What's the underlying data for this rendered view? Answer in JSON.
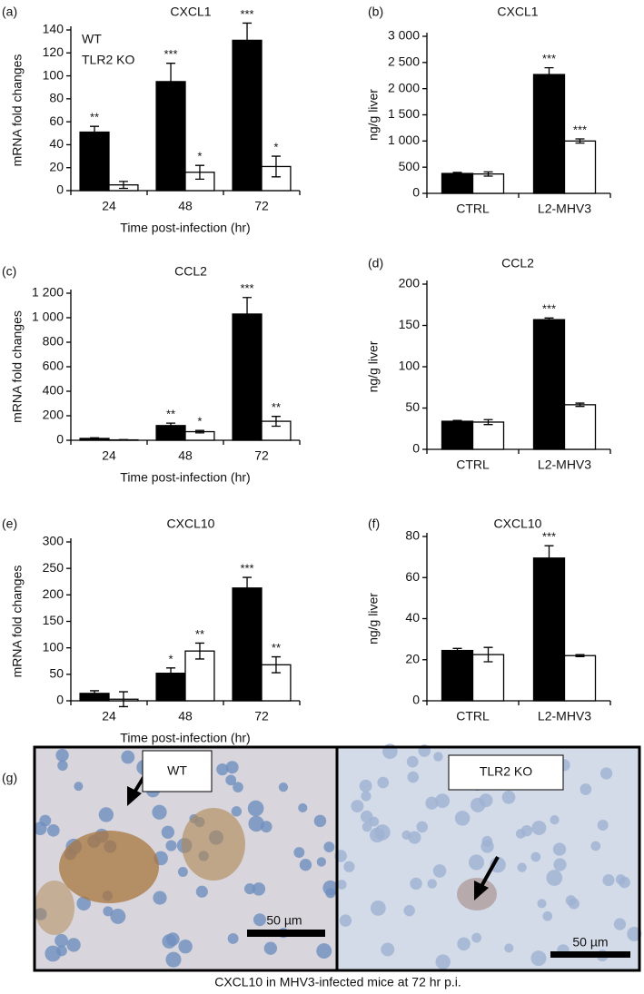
{
  "chart_data": [
    {
      "type": "bar",
      "panel": "(a)",
      "title": "CXCL1",
      "xlabel": "Time post-infection (hr)",
      "ylabel": "mRNA fold changes",
      "categories": [
        "24",
        "48",
        "72"
      ],
      "ylim": [
        0,
        140
      ],
      "yticks": [
        0,
        20,
        40,
        60,
        80,
        100,
        120,
        140
      ],
      "legend": "upper left",
      "series": [
        {
          "name": "WT",
          "color": "#000000",
          "values": [
            51,
            95,
            131
          ],
          "errors": [
            5,
            16,
            15
          ],
          "annotations": [
            "**",
            "***",
            "***"
          ]
        },
        {
          "name": "TLR2 KO",
          "color": "#ffffff",
          "values": [
            5,
            16,
            21
          ],
          "errors": [
            3,
            6,
            9
          ],
          "annotations": [
            null,
            "*",
            "*"
          ]
        }
      ]
    },
    {
      "type": "bar",
      "panel": "(b)",
      "title": "CXCL1",
      "ylabel": "ng/g liver",
      "categories": [
        "CTRL",
        "L2-MHV3"
      ],
      "ylim": [
        0,
        3000
      ],
      "yticks": [
        0,
        500,
        {
          "value": 1000,
          "label": "1 000"
        },
        {
          "value": 1500,
          "label": "1 500"
        },
        {
          "value": 2000,
          "label": "2 000"
        },
        {
          "value": 2500,
          "label": "2 500"
        },
        {
          "value": 3000,
          "label": "3 000"
        }
      ],
      "series": [
        {
          "color": "#000000",
          "values": [
            380,
            2270
          ],
          "errors": [
            20,
            130
          ],
          "annotations": [
            null,
            "***"
          ]
        },
        {
          "color": "#ffffff",
          "values": [
            370,
            1000
          ],
          "errors": [
            40,
            40
          ],
          "annotations": [
            null,
            "***"
          ]
        }
      ]
    },
    {
      "type": "bar",
      "panel": "(c)",
      "title": "CCL2",
      "xlabel": "Time post-infection (hr)",
      "ylabel": "mRNA fold changes",
      "categories": [
        "24",
        "48",
        "72"
      ],
      "ylim": [
        0,
        1200
      ],
      "yticks": [
        0,
        200,
        400,
        600,
        800,
        {
          "value": 1000,
          "label": "1 000"
        },
        {
          "value": 1200,
          "label": "1 200"
        }
      ],
      "series": [
        {
          "color": "#000000",
          "values": [
            15,
            120,
            1030
          ],
          "errors": [
            5,
            20,
            135
          ],
          "annotations": [
            null,
            "**",
            "***"
          ]
        },
        {
          "color": "#ffffff",
          "values": [
            3,
            70,
            155
          ],
          "errors": [
            2,
            10,
            40
          ],
          "annotations": [
            null,
            "*",
            "**"
          ]
        }
      ]
    },
    {
      "type": "bar",
      "panel": "(d)",
      "title": "CCL2",
      "ylabel": "ng/g liver",
      "categories": [
        "CTRL",
        "L2-MHV3"
      ],
      "ylim": [
        0,
        200
      ],
      "yticks": [
        0,
        50,
        100,
        150,
        200
      ],
      "series": [
        {
          "color": "#000000",
          "values": [
            34,
            157
          ],
          "errors": [
            1,
            2
          ],
          "annotations": [
            null,
            "***"
          ]
        },
        {
          "color": "#ffffff",
          "values": [
            33,
            54
          ],
          "errors": [
            3,
            2
          ],
          "annotations": [
            null,
            null
          ]
        }
      ]
    },
    {
      "type": "bar",
      "panel": "(e)",
      "title": "CXCL10",
      "xlabel": "Time post-infection (hr)",
      "ylabel": "mRNA fold changes",
      "categories": [
        "24",
        "48",
        "72"
      ],
      "ylim": [
        0,
        300
      ],
      "yticks": [
        0,
        50,
        100,
        150,
        200,
        250,
        300
      ],
      "series": [
        {
          "color": "#000000",
          "values": [
            14,
            52,
            213
          ],
          "errors": [
            5,
            10,
            20
          ],
          "annotations": [
            null,
            "*",
            "***"
          ]
        },
        {
          "color": "#ffffff",
          "values": [
            3,
            94,
            68
          ],
          "errors": [
            14,
            15,
            15
          ],
          "annotations": [
            null,
            "**",
            "**"
          ]
        }
      ]
    },
    {
      "type": "bar",
      "panel": "(f)",
      "title": "CXCL10",
      "ylabel": "ng/g liver",
      "categories": [
        "CTRL",
        "L2-MHV3"
      ],
      "ylim": [
        0,
        80
      ],
      "yticks": [
        0,
        20,
        40,
        60,
        80
      ],
      "series": [
        {
          "color": "#000000",
          "values": [
            24.5,
            69.5
          ],
          "errors": [
            1,
            6
          ],
          "annotations": [
            null,
            "***"
          ]
        },
        {
          "color": "#ffffff",
          "values": [
            22.5,
            22
          ],
          "errors": [
            3.5,
            0.5
          ],
          "annotations": [
            null,
            null
          ]
        }
      ]
    }
  ],
  "image_panel": {
    "label": "(g)",
    "left_label": "WT",
    "right_label": "TLR2 KO",
    "left_scale": "50 µm",
    "right_scale": "50 µm",
    "caption": "CXCL10 in MHV3-infected mice at 72 hr p.i."
  }
}
